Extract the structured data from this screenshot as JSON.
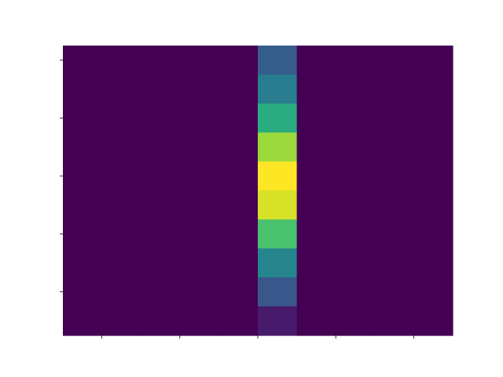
{
  "chart_data": {
    "type": "heatmap",
    "title": "",
    "xlabel": "",
    "ylabel": "",
    "columns": 10,
    "rows": 10,
    "colormap": "viridis",
    "value_range": [
      0,
      1
    ],
    "x_ticks": 5,
    "y_ticks": 5,
    "grid": false,
    "legend": "none",
    "nonzero_column": 5,
    "values": [
      [
        0,
        0,
        0,
        0,
        0,
        0.29,
        0,
        0,
        0,
        0
      ],
      [
        0,
        0,
        0,
        0,
        0,
        0.42,
        0,
        0,
        0,
        0
      ],
      [
        0,
        0,
        0,
        0,
        0,
        0.62,
        0,
        0,
        0,
        0
      ],
      [
        0,
        0,
        0,
        0,
        0,
        0.85,
        0,
        0,
        0,
        0
      ],
      [
        0,
        0,
        0,
        0,
        0,
        1.0,
        0,
        0,
        0,
        0
      ],
      [
        0,
        0,
        0,
        0,
        0,
        0.94,
        0,
        0,
        0,
        0
      ],
      [
        0,
        0,
        0,
        0,
        0,
        0.71,
        0,
        0,
        0,
        0
      ],
      [
        0,
        0,
        0,
        0,
        0,
        0.45,
        0,
        0,
        0,
        0
      ],
      [
        0,
        0,
        0,
        0,
        0,
        0.27,
        0,
        0,
        0,
        0
      ],
      [
        0,
        0,
        0,
        0,
        0,
        0.07,
        0,
        0,
        0,
        0
      ]
    ]
  }
}
